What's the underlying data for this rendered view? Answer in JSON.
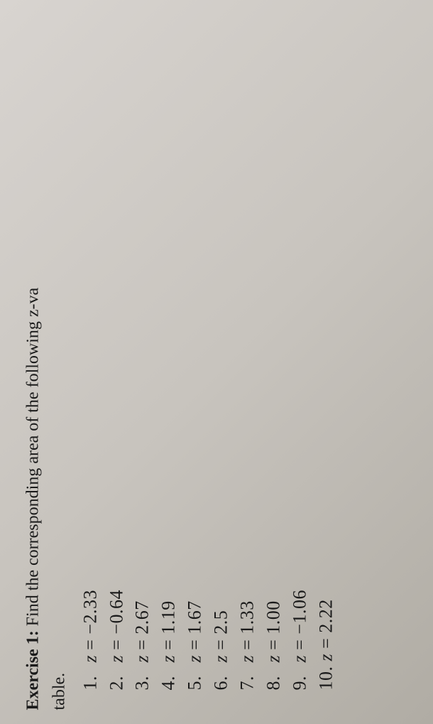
{
  "exercise": {
    "label": "Exercise 1:",
    "instruction": "Find the corresponding area of the following z-va",
    "continuation": "table."
  },
  "items": [
    {
      "num": "1.",
      "var": "z",
      "eq": "=",
      "val": "−2.33"
    },
    {
      "num": "2.",
      "var": "z",
      "eq": "=",
      "val": "−0.64"
    },
    {
      "num": "3.",
      "var": "z",
      "eq": "=",
      "val": "2.67"
    },
    {
      "num": "4.",
      "var": "z",
      "eq": "=",
      "val": "1.19"
    },
    {
      "num": "5.",
      "var": "z",
      "eq": "=",
      "val": "1.67"
    },
    {
      "num": "6.",
      "var": "z",
      "eq": "=",
      "val": "2.5"
    },
    {
      "num": "7.",
      "var": "z",
      "eq": "=",
      "val": "1.33"
    },
    {
      "num": "8.",
      "var": "z",
      "eq": "=",
      "val": "1.00"
    },
    {
      "num": "9.",
      "var": "z",
      "eq": "=",
      "val": "−1.06"
    },
    {
      "num": "10.",
      "var": "z",
      "eq": "=",
      "val": "2.22"
    }
  ]
}
